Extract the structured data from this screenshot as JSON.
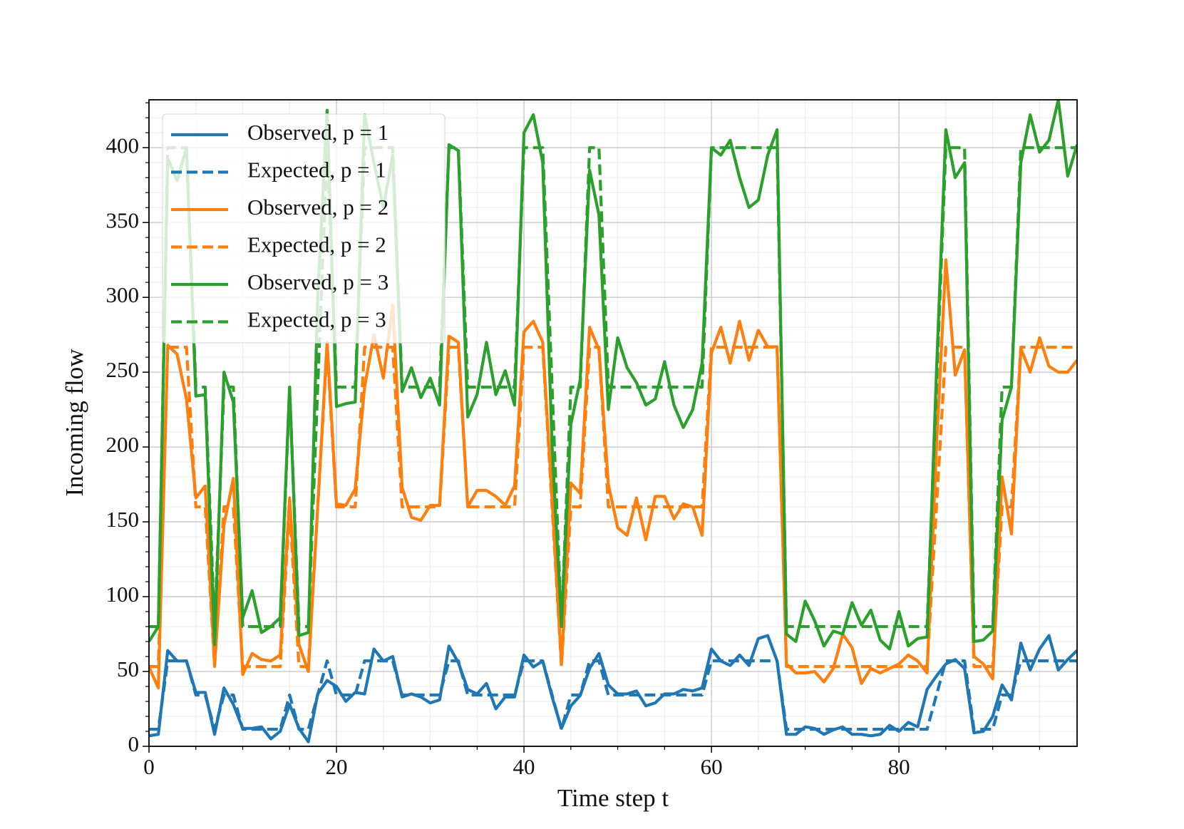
{
  "chart_data": {
    "type": "line",
    "xlabel": "Time step t",
    "ylabel": "Incoming flow",
    "x": [
      0,
      1,
      2,
      3,
      4,
      5,
      6,
      7,
      8,
      9,
      10,
      11,
      12,
      13,
      14,
      15,
      16,
      17,
      18,
      19,
      20,
      21,
      22,
      23,
      24,
      25,
      26,
      27,
      28,
      29,
      30,
      31,
      32,
      33,
      34,
      35,
      36,
      37,
      38,
      39,
      40,
      41,
      42,
      43,
      44,
      45,
      46,
      47,
      48,
      49,
      50,
      51,
      52,
      53,
      54,
      55,
      56,
      57,
      58,
      59,
      60,
      61,
      62,
      63,
      64,
      65,
      66,
      67,
      68,
      69,
      70,
      71,
      72,
      73,
      74,
      75,
      76,
      77,
      78,
      79,
      80,
      81,
      82,
      83,
      84,
      85,
      86,
      87,
      88,
      89,
      90,
      91,
      92,
      93,
      94,
      95,
      96,
      97,
      98,
      99
    ],
    "xlim": [
      0,
      99
    ],
    "ylim": [
      0,
      432
    ],
    "xticks": [
      0,
      20,
      40,
      60,
      80
    ],
    "yticks": [
      0,
      50,
      100,
      150,
      200,
      250,
      300,
      350,
      400
    ],
    "xminorticks": [
      5,
      10,
      15,
      25,
      30,
      35,
      45,
      50,
      55,
      65,
      70,
      75,
      85,
      90,
      95
    ],
    "yminorticks": [
      10,
      20,
      30,
      40,
      60,
      70,
      80,
      90,
      110,
      120,
      130,
      140,
      160,
      170,
      180,
      190,
      210,
      220,
      230,
      240,
      260,
      270,
      280,
      290,
      310,
      320,
      330,
      340,
      360,
      370,
      380,
      390,
      410,
      420,
      430
    ],
    "grid": true,
    "legend": "upper left",
    "series": [
      {
        "name": "Observed, p = 1",
        "color": "#1f77b4",
        "style": "solid",
        "values": [
          7,
          8,
          64,
          57,
          57,
          36,
          36,
          8,
          39,
          28,
          12,
          12,
          13,
          5,
          10,
          28,
          12,
          3,
          35,
          44,
          40,
          30,
          36,
          35,
          65,
          57,
          60,
          33,
          35,
          33,
          29,
          31,
          67,
          56,
          38,
          35,
          42,
          25,
          33,
          33,
          61,
          53,
          57,
          33,
          12,
          27,
          34,
          52,
          62,
          41,
          35,
          35,
          37,
          27,
          29,
          35,
          35,
          38,
          37,
          39,
          65,
          57,
          54,
          61,
          54,
          72,
          74,
          57,
          8,
          8,
          13,
          12,
          8,
          11,
          13,
          8,
          8,
          7,
          8,
          14,
          10,
          16,
          13,
          38,
          47,
          55,
          58,
          52,
          9,
          10,
          20,
          41,
          31,
          69,
          51,
          65,
          74,
          51,
          58,
          64
        ]
      },
      {
        "name": "Expected, p = 1",
        "color": "#1f77b4",
        "style": "dashed",
        "values": [
          11.4,
          11.4,
          57.1,
          57.1,
          57.1,
          34.3,
          34.3,
          11.4,
          34.3,
          34.3,
          11.4,
          11.4,
          11.4,
          11.4,
          11.4,
          34.3,
          11.4,
          11.4,
          34.3,
          57.1,
          34.3,
          34.3,
          34.3,
          57.1,
          57.1,
          57.1,
          57.1,
          34.3,
          34.3,
          34.3,
          34.3,
          34.3,
          57.1,
          57.1,
          34.3,
          34.3,
          34.3,
          34.3,
          34.3,
          34.3,
          57.1,
          57.1,
          57.1,
          34.3,
          11.4,
          34.3,
          34.3,
          57.1,
          57.1,
          34.3,
          34.3,
          34.3,
          34.3,
          34.3,
          34.3,
          34.3,
          34.3,
          34.3,
          34.3,
          34.3,
          57.1,
          57.1,
          57.1,
          57.1,
          57.1,
          57.1,
          57.1,
          57.1,
          11.4,
          11.4,
          11.4,
          11.4,
          11.4,
          11.4,
          11.4,
          11.4,
          11.4,
          11.4,
          11.4,
          11.4,
          11.4,
          11.4,
          11.4,
          11.4,
          34.3,
          57.1,
          57.1,
          57.1,
          11.4,
          11.4,
          11.4,
          34.3,
          34.3,
          57.1,
          57.1,
          57.1,
          57.1,
          57.1,
          57.1,
          57.1
        ]
      },
      {
        "name": "Observed, p = 2",
        "color": "#ff7f0e",
        "style": "solid",
        "values": [
          53,
          39,
          268,
          262,
          232,
          166,
          174,
          54,
          148,
          179,
          48,
          62,
          58,
          57,
          61,
          166,
          68,
          50,
          160,
          270,
          162,
          161,
          172,
          240,
          275,
          246,
          295,
          173,
          153,
          151,
          161,
          161,
          274,
          270,
          160,
          171,
          171,
          167,
          161,
          174,
          277,
          284,
          270,
          165,
          55,
          176,
          169,
          280,
          265,
          175,
          146,
          141,
          166,
          138,
          167,
          167,
          152,
          162,
          160,
          141,
          263,
          280,
          256,
          284,
          258,
          278,
          267,
          267,
          55,
          49,
          49,
          50,
          43,
          52,
          75,
          66,
          42,
          52,
          49,
          52,
          55,
          61,
          57,
          49,
          200,
          325,
          248,
          265,
          60,
          55,
          45,
          180,
          142,
          266,
          250,
          273,
          254,
          250,
          250,
          258
        ]
      },
      {
        "name": "Expected, p = 2",
        "color": "#ff7f0e",
        "style": "dashed",
        "values": [
          53.3,
          53.3,
          266.7,
          266.7,
          266.7,
          160,
          160,
          53.3,
          160,
          160,
          53.3,
          53.3,
          53.3,
          53.3,
          53.3,
          160,
          53.3,
          53.3,
          160,
          266.7,
          160,
          160,
          160,
          266.7,
          266.7,
          266.7,
          266.7,
          160,
          160,
          160,
          160,
          160,
          266.7,
          266.7,
          160,
          160,
          160,
          160,
          160,
          160,
          266.7,
          266.7,
          266.7,
          160,
          53.3,
          160,
          160,
          266.7,
          266.7,
          160,
          160,
          160,
          160,
          160,
          160,
          160,
          160,
          160,
          160,
          160,
          266.7,
          266.7,
          266.7,
          266.7,
          266.7,
          266.7,
          266.7,
          266.7,
          53.3,
          53.3,
          53.3,
          53.3,
          53.3,
          53.3,
          53.3,
          53.3,
          53.3,
          53.3,
          53.3,
          53.3,
          53.3,
          53.3,
          53.3,
          53.3,
          160,
          266.7,
          266.7,
          266.7,
          53.3,
          53.3,
          53.3,
          160,
          160,
          266.7,
          266.7,
          266.7,
          266.7,
          266.7,
          266.7,
          266.7
        ]
      },
      {
        "name": "Observed, p = 3",
        "color": "#2ca02c",
        "style": "solid",
        "values": [
          70,
          80,
          393,
          378,
          400,
          234,
          235,
          68,
          250,
          230,
          86,
          104,
          76,
          80,
          86,
          240,
          74,
          76,
          300,
          425,
          227,
          229,
          230,
          422,
          390,
          360,
          395,
          237,
          253,
          233,
          246,
          228,
          402,
          398,
          220,
          235,
          270,
          235,
          251,
          228,
          410,
          422,
          390,
          200,
          82,
          215,
          245,
          385,
          355,
          225,
          273,
          253,
          243,
          228,
          232,
          257,
          228,
          213,
          225,
          256,
          400,
          395,
          405,
          380,
          360,
          365,
          395,
          412,
          75,
          70,
          97,
          84,
          67,
          77,
          75,
          96,
          81,
          91,
          71,
          65,
          90,
          67,
          72,
          73,
          250,
          412,
          380,
          390,
          70,
          71,
          77,
          218,
          240,
          390,
          422,
          397,
          405,
          432,
          381,
          402
        ]
      },
      {
        "name": "Expected, p = 3",
        "color": "#2ca02c",
        "style": "dashed",
        "values": [
          80,
          80,
          400,
          400,
          400,
          240,
          240,
          80,
          240,
          240,
          80,
          80,
          80,
          80,
          80,
          240,
          80,
          80,
          240,
          400,
          240,
          240,
          240,
          400,
          400,
          400,
          400,
          240,
          240,
          240,
          240,
          240,
          400,
          400,
          240,
          240,
          240,
          240,
          240,
          240,
          400,
          400,
          400,
          240,
          80,
          240,
          240,
          400,
          400,
          240,
          240,
          240,
          240,
          240,
          240,
          240,
          240,
          240,
          240,
          240,
          400,
          400,
          400,
          400,
          400,
          400,
          400,
          400,
          80,
          80,
          80,
          80,
          80,
          80,
          80,
          80,
          80,
          80,
          80,
          80,
          80,
          80,
          80,
          80,
          240,
          400,
          400,
          400,
          80,
          80,
          80,
          240,
          240,
          400,
          400,
          400,
          400,
          400,
          400,
          400
        ]
      }
    ]
  }
}
